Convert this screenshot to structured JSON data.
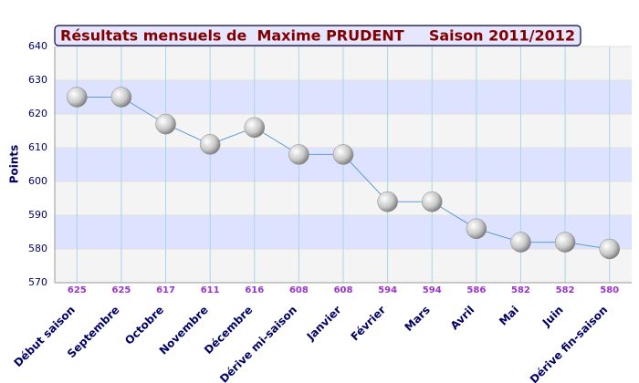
{
  "chart_data": {
    "type": "line",
    "title": "Résultats mensuels de  Maxime PRUDENT",
    "subtitle": "Saison 2011/2012",
    "y_label": "Points",
    "categories": [
      "Début saison",
      "Septembre",
      "Octobre",
      "Novembre",
      "Décembre",
      "Dérive mi-saison",
      "Janvier",
      "Février",
      "Mars",
      "Avril",
      "Mai",
      "Juin",
      "Dérive fin-saison"
    ],
    "series": [
      {
        "name": "Points",
        "color": "#5b9bd5",
        "values": [
          625,
          625,
          617,
          611,
          616,
          608,
          608,
          594,
          594,
          586,
          582,
          582,
          580
        ]
      }
    ],
    "ylim": [
      570,
      640
    ],
    "yticks": [
      570,
      580,
      590,
      600,
      610,
      620,
      630,
      640
    ],
    "band_colors": [
      "#f4f4f4",
      "#dde3ff"
    ],
    "grid": true
  }
}
